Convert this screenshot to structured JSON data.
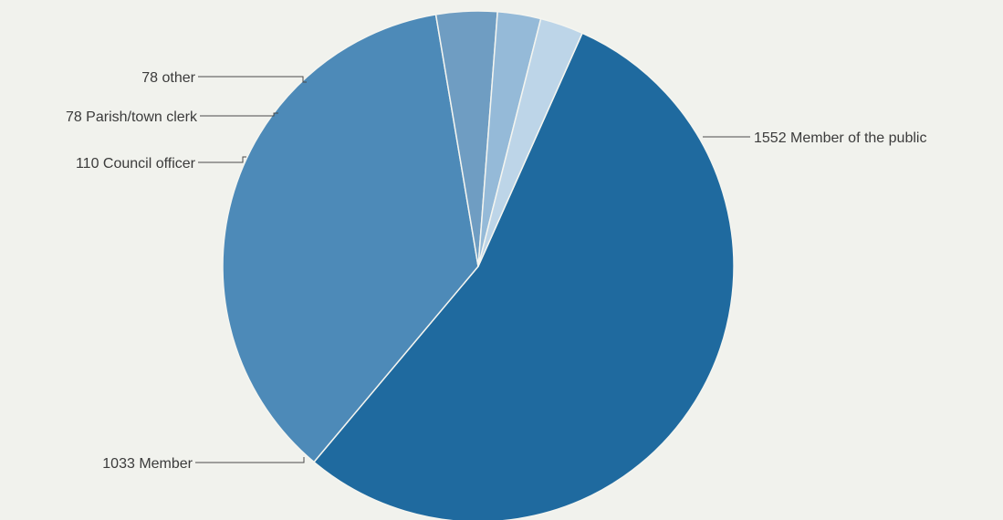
{
  "chart_data": {
    "type": "pie",
    "slices": [
      {
        "label": "1552 Member of the public",
        "value": 1552,
        "color": "#1f6a9f"
      },
      {
        "label": "1033 Member",
        "value": 1033,
        "color": "#4d8ab8"
      },
      {
        "label": "110 Council officer",
        "value": 110,
        "color": "#6f9dc2"
      },
      {
        "label": "78 Parish/town clerk",
        "value": 78,
        "color": "#95bad8"
      },
      {
        "label": "78 other",
        "value": 78,
        "color": "#bdd5e8"
      }
    ]
  }
}
